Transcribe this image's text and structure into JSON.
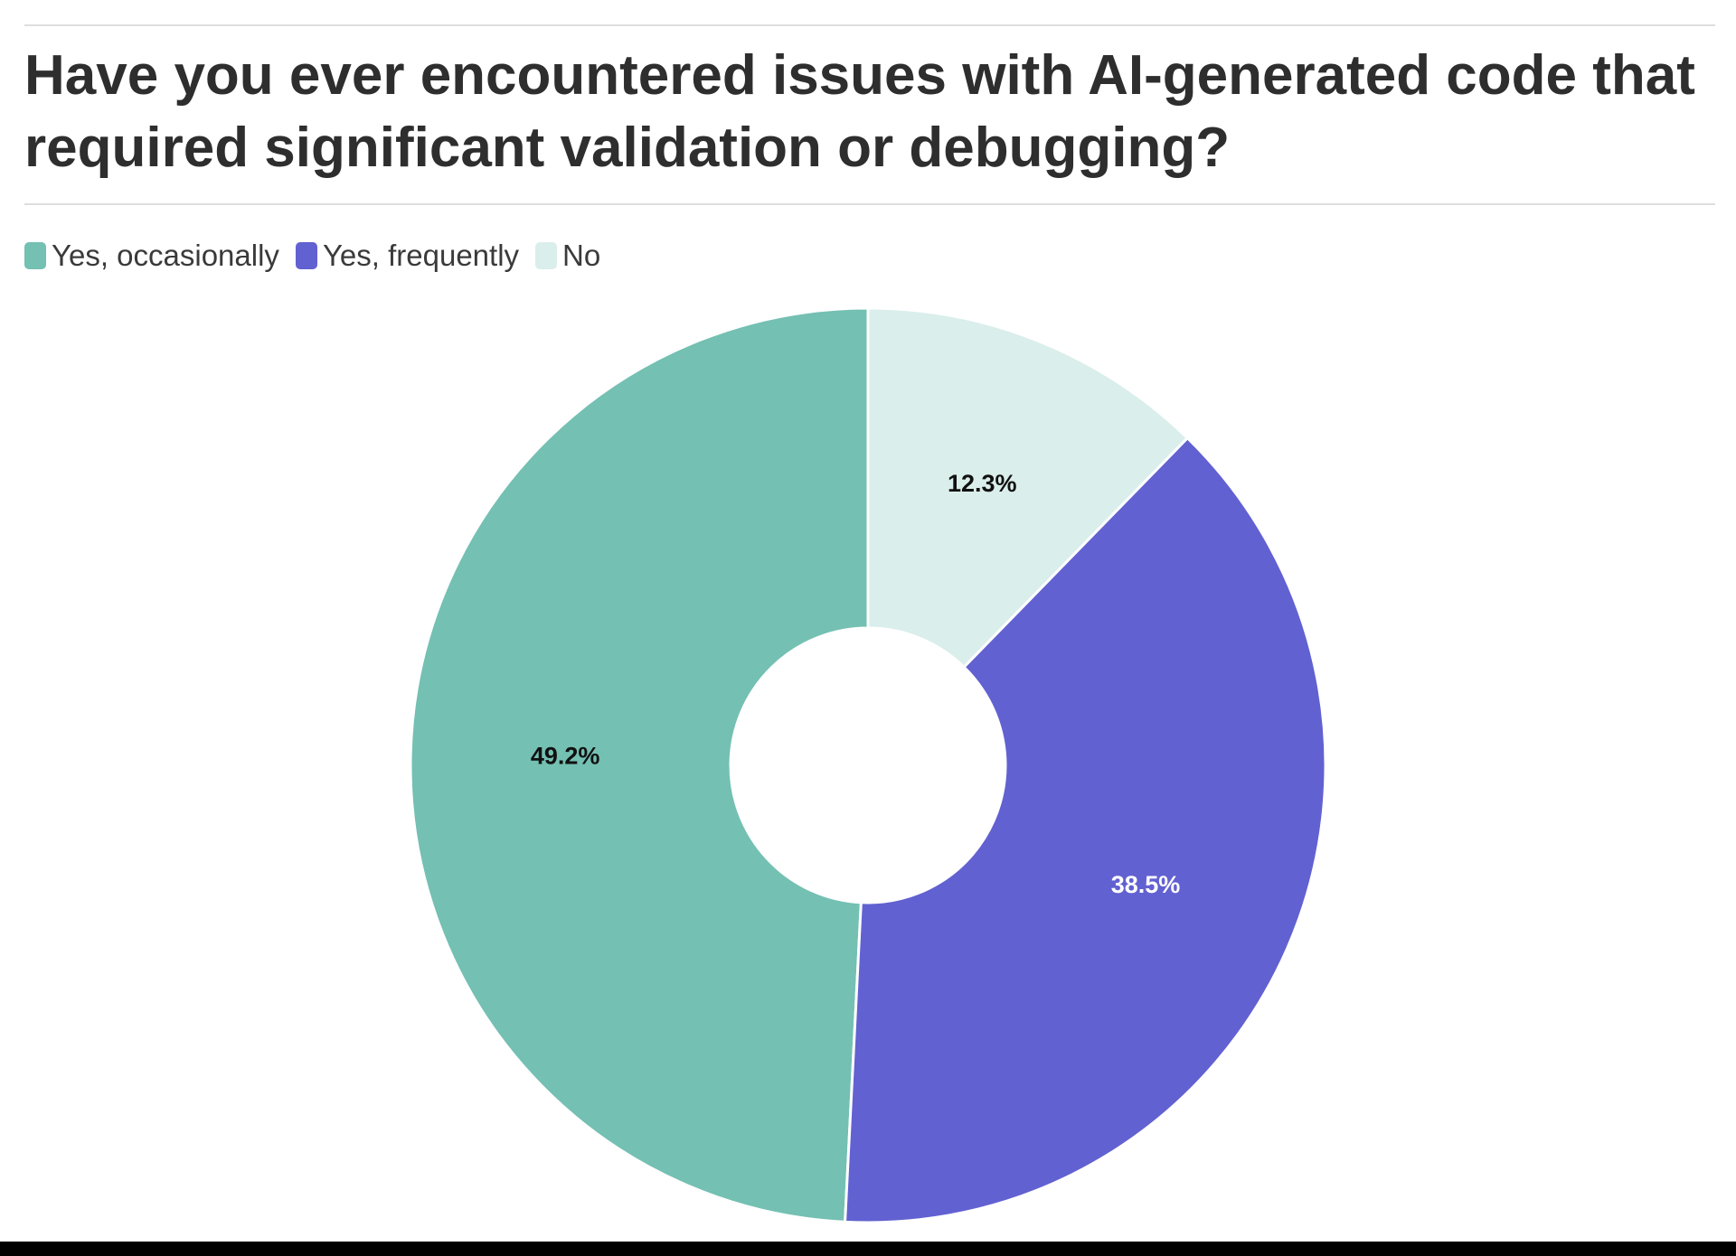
{
  "chart_data": {
    "type": "pie",
    "title": "Have you ever encountered issues with AI-generated code that required significant validation or debugging?",
    "categories": [
      "Yes, occasionally",
      "Yes, frequently",
      "No"
    ],
    "values": [
      49.2,
      38.5,
      12.3
    ],
    "value_labels": [
      "49.2%",
      "38.5%",
      "12.3%"
    ],
    "colors": [
      "#74c0b3",
      "#6261d1",
      "#daeeeb"
    ],
    "donut": true,
    "direction": "counterclockwise"
  }
}
